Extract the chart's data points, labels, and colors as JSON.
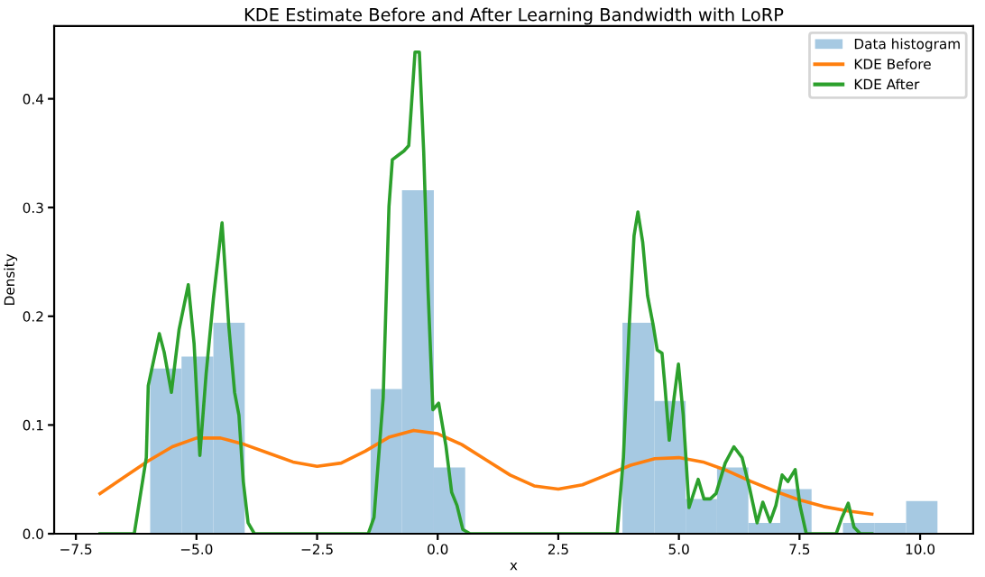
{
  "chart_data": {
    "type": "histogram",
    "title": "KDE Estimate Before and After Learning Bandwidth with LoRP",
    "xlabel": "x",
    "ylabel": "Density",
    "xlim": [
      -7.95,
      11.1
    ],
    "ylim": [
      0,
      0.467
    ],
    "xticks": [
      {
        "value": -7.5,
        "label": "−7.5"
      },
      {
        "value": -5.0,
        "label": "−5.0"
      },
      {
        "value": -2.5,
        "label": "−2.5"
      },
      {
        "value": 0,
        "label": "0.0"
      },
      2.5,
      {
        "value": 5,
        "label": "5.0"
      },
      7.5,
      {
        "value": 10,
        "label": "10.0"
      }
    ],
    "yticks": [
      {
        "value": 0,
        "label": "0.0"
      },
      0.1,
      0.2,
      0.3,
      0.4
    ],
    "grid": false,
    "legend": "top right",
    "series": [
      {
        "name": "Data histogram",
        "color": "#a6c9e2",
        "bins": [
          -5.96,
          -5.31,
          -4.65,
          -4.0,
          -1.39,
          -0.74,
          -0.08,
          0.57,
          3.83,
          4.49,
          5.14,
          5.79,
          6.44,
          7.1,
          7.75,
          8.4,
          9.06,
          9.71,
          10.36
        ],
        "values": [
          0.152,
          0.163,
          0.194,
          0,
          0.133,
          0.316,
          0.061,
          0,
          0.194,
          0.122,
          0.032,
          0.061,
          0.01,
          0.041,
          0,
          0.01,
          0.01,
          0.03
        ]
      },
      {
        "type": "line",
        "name": "KDE Before",
        "color": "#ff7f0e",
        "x": [
          -7,
          -6.5,
          -6,
          -5.5,
          -5,
          -4.5,
          -4,
          -3.5,
          -3,
          -2.5,
          -2,
          -1.5,
          -1,
          -0.5,
          0,
          0.5,
          1,
          1.5,
          2,
          2.5,
          3,
          3.5,
          4,
          4.5,
          5,
          5.5,
          6,
          6.5,
          7,
          7.5,
          8,
          8.5,
          9
        ],
        "values": [
          0.037,
          0.052,
          0.067,
          0.08,
          0.088,
          0.088,
          0.082,
          0.074,
          0.066,
          0.062,
          0.065,
          0.076,
          0.089,
          0.095,
          0.092,
          0.082,
          0.068,
          0.054,
          0.044,
          0.041,
          0.045,
          0.054,
          0.063,
          0.069,
          0.07,
          0.066,
          0.058,
          0.048,
          0.039,
          0.031,
          0.025,
          0.021,
          0.018
        ]
      },
      {
        "type": "line",
        "name": "KDE After",
        "color": "#2ca02c",
        "x": [
          -7,
          -6.29,
          -6.04,
          -6.0,
          -5.77,
          -5.67,
          -5.52,
          -5.36,
          -5.17,
          -5.05,
          -4.93,
          -4.8,
          -4.65,
          -4.47,
          -4.33,
          -4.21,
          -4.12,
          -4.03,
          -3.93,
          -3.8,
          -1.44,
          -1.32,
          -1.13,
          -1.01,
          -0.94,
          -0.82,
          -0.7,
          -0.6,
          -0.47,
          -0.38,
          -0.29,
          -0.2,
          -0.1,
          0.02,
          0.17,
          0.29,
          0.4,
          0.52,
          0.67,
          3.72,
          3.85,
          3.97,
          4.07,
          4.15,
          4.25,
          4.35,
          4.47,
          4.55,
          4.65,
          4.71,
          4.8,
          4.9,
          4.99,
          5.09,
          5.21,
          5.4,
          5.52,
          5.65,
          5.77,
          5.96,
          6.14,
          6.31,
          6.46,
          6.62,
          6.74,
          6.89,
          7.01,
          7.14,
          7.26,
          7.41,
          7.51,
          7.64,
          8.26,
          8.38,
          8.51,
          8.63,
          8.76,
          9.0
        ],
        "values": [
          0,
          0,
          0.07,
          0.136,
          0.184,
          0.167,
          0.13,
          0.188,
          0.229,
          0.175,
          0.072,
          0.147,
          0.216,
          0.286,
          0.191,
          0.13,
          0.109,
          0.048,
          0.01,
          0,
          0,
          0.015,
          0.125,
          0.301,
          0.344,
          0.348,
          0.352,
          0.357,
          0.443,
          0.443,
          0.351,
          0.224,
          0.114,
          0.12,
          0.081,
          0.038,
          0.026,
          0.004,
          0,
          0,
          0.07,
          0.191,
          0.274,
          0.296,
          0.268,
          0.219,
          0.191,
          0.169,
          0.166,
          0.136,
          0.086,
          0.125,
          0.156,
          0.109,
          0.024,
          0.05,
          0.032,
          0.032,
          0.037,
          0.065,
          0.08,
          0.07,
          0.043,
          0.01,
          0.029,
          0.011,
          0.026,
          0.054,
          0.048,
          0.059,
          0.026,
          0,
          0,
          0.015,
          0.028,
          0.006,
          0,
          0
        ]
      }
    ]
  }
}
